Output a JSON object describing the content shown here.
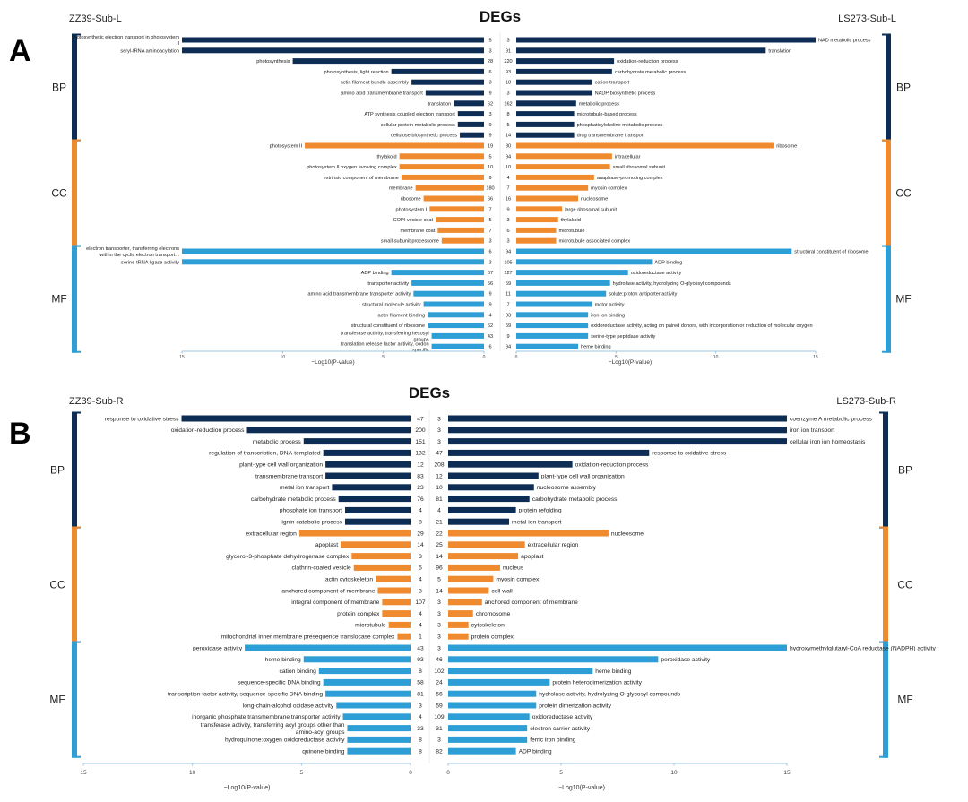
{
  "figure_colors": {
    "BP": "#0d2d55",
    "CC": "#f08a2e",
    "MF": "#2e9fd6",
    "axis": "#9cc6e0",
    "text": "#222222"
  },
  "chart_data": [
    {
      "panel_letter": "A",
      "type": "bar",
      "title": "DEGs",
      "left_label": "ZZ39-Sub-L",
      "right_label": "LS273-Sub-L",
      "xlabel": "−Log10(P-value)",
      "left_xlim": [
        15,
        0
      ],
      "right_xlim": [
        0,
        15
      ],
      "left_ticks": [
        "15",
        "10",
        "5",
        "0"
      ],
      "right_ticks": [
        "0",
        "5",
        "10",
        "15"
      ],
      "left_rows": [
        {
          "cat": "BP",
          "label": "photosynthetic electron transport in photosystem II",
          "value": 15.0,
          "count": "5"
        },
        {
          "cat": "BP",
          "label": "seryl-tRNA aminoacylation",
          "value": 15.0,
          "count": "3"
        },
        {
          "cat": "BP",
          "label": "photosynthesis",
          "value": 9.5,
          "count": "28"
        },
        {
          "cat": "BP",
          "label": "photosynthesis, light reaction",
          "value": 4.6,
          "count": "6"
        },
        {
          "cat": "BP",
          "label": "actin filament bundle assembly",
          "value": 3.6,
          "count": "3"
        },
        {
          "cat": "BP",
          "label": "amino acid transmembrane transport",
          "value": 2.9,
          "count": "9"
        },
        {
          "cat": "BP",
          "label": "translation",
          "value": 1.5,
          "count": "62"
        },
        {
          "cat": "BP",
          "label": "ATP synthesis coupled electron transport",
          "value": 1.3,
          "count": "3"
        },
        {
          "cat": "BP",
          "label": "cellular protein metabolic process",
          "value": 1.3,
          "count": "9"
        },
        {
          "cat": "BP",
          "label": "cellulose biosynthetic process",
          "value": 1.2,
          "count": "9"
        },
        {
          "cat": "CC",
          "label": "photosystem II",
          "value": 8.9,
          "count": "19"
        },
        {
          "cat": "CC",
          "label": "thylakoid",
          "value": 4.2,
          "count": "5"
        },
        {
          "cat": "CC",
          "label": "photosystem II oxygen evolving complex",
          "value": 4.2,
          "count": "10"
        },
        {
          "cat": "CC",
          "label": "extrinsic component of membrane",
          "value": 4.1,
          "count": "9"
        },
        {
          "cat": "CC",
          "label": "membrane",
          "value": 3.4,
          "count": "180"
        },
        {
          "cat": "CC",
          "label": "ribosome",
          "value": 3.0,
          "count": "66"
        },
        {
          "cat": "CC",
          "label": "photosystem I",
          "value": 2.7,
          "count": "7"
        },
        {
          "cat": "CC",
          "label": "COPI vesicle coat",
          "value": 2.4,
          "count": "5"
        },
        {
          "cat": "CC",
          "label": "membrane coat",
          "value": 2.3,
          "count": "7"
        },
        {
          "cat": "CC",
          "label": "small-subunit processome",
          "value": 2.1,
          "count": "3"
        },
        {
          "cat": "MF",
          "label": "electron transporter, transferring electrons within the cyclic electron transport...",
          "value": 15.0,
          "count": "6"
        },
        {
          "cat": "MF",
          "label": "serine-tRNA ligase activity",
          "value": 15.0,
          "count": "3"
        },
        {
          "cat": "MF",
          "label": "ADP binding",
          "value": 4.6,
          "count": "87"
        },
        {
          "cat": "MF",
          "label": "transporter activity",
          "value": 3.6,
          "count": "56"
        },
        {
          "cat": "MF",
          "label": "amino acid transmembrane transporter activity",
          "value": 3.5,
          "count": "9"
        },
        {
          "cat": "MF",
          "label": "structural molecule activity",
          "value": 3.0,
          "count": "9"
        },
        {
          "cat": "MF",
          "label": "actin filament binding",
          "value": 2.8,
          "count": "4"
        },
        {
          "cat": "MF",
          "label": "structural constituent of ribosome",
          "value": 2.8,
          "count": "62"
        },
        {
          "cat": "MF",
          "label": "transferase activity, transferring hexosyl groups",
          "value": 2.6,
          "count": "43"
        },
        {
          "cat": "MF",
          "label": "translation release factor activity, codon specific",
          "value": 2.6,
          "count": "6"
        }
      ],
      "right_rows": [
        {
          "cat": "BP",
          "label": "NAD metabolic process",
          "value": 15.0,
          "count": "3"
        },
        {
          "cat": "BP",
          "label": "translation",
          "value": 12.5,
          "count": "91"
        },
        {
          "cat": "BP",
          "label": "oxidation-reduction process",
          "value": 4.9,
          "count": "220"
        },
        {
          "cat": "BP",
          "label": "carbohydrate metabolic process",
          "value": 4.8,
          "count": "93"
        },
        {
          "cat": "BP",
          "label": "cation transport",
          "value": 3.8,
          "count": "18"
        },
        {
          "cat": "BP",
          "label": "NADP biosynthetic process",
          "value": 3.8,
          "count": "3"
        },
        {
          "cat": "BP",
          "label": "metabolic process",
          "value": 3.0,
          "count": "162"
        },
        {
          "cat": "BP",
          "label": "microtubule-based process",
          "value": 2.9,
          "count": "8"
        },
        {
          "cat": "BP",
          "label": "phosphatidylcholine metabolic process",
          "value": 2.9,
          "count": "5"
        },
        {
          "cat": "BP",
          "label": "drug transmembrane transport",
          "value": 2.9,
          "count": "14"
        },
        {
          "cat": "CC",
          "label": "ribosome",
          "value": 12.9,
          "count": "80"
        },
        {
          "cat": "CC",
          "label": "intracellular",
          "value": 4.8,
          "count": "94"
        },
        {
          "cat": "CC",
          "label": "small ribosomal subunit",
          "value": 4.7,
          "count": "10"
        },
        {
          "cat": "CC",
          "label": "anaphase-promoting complex",
          "value": 3.9,
          "count": "4"
        },
        {
          "cat": "CC",
          "label": "myosin complex",
          "value": 3.6,
          "count": "7"
        },
        {
          "cat": "CC",
          "label": "nucleosome",
          "value": 3.1,
          "count": "16"
        },
        {
          "cat": "CC",
          "label": "large ribosomal subunit",
          "value": 2.3,
          "count": "9"
        },
        {
          "cat": "CC",
          "label": "thylakoid",
          "value": 2.1,
          "count": "3"
        },
        {
          "cat": "CC",
          "label": "microtubule",
          "value": 2.0,
          "count": "6"
        },
        {
          "cat": "CC",
          "label": "microtubule associated complex",
          "value": 2.0,
          "count": "3"
        },
        {
          "cat": "MF",
          "label": "structural constituent of ribosome",
          "value": 13.8,
          "count": "94"
        },
        {
          "cat": "MF",
          "label": "ADP binding",
          "value": 6.8,
          "count": "105"
        },
        {
          "cat": "MF",
          "label": "oxidoreductase activity",
          "value": 5.6,
          "count": "127"
        },
        {
          "cat": "MF",
          "label": "hydrolase activity, hydrolyzing O-glycosyl compounds",
          "value": 4.7,
          "count": "59"
        },
        {
          "cat": "MF",
          "label": "solute:proton antiporter activity",
          "value": 4.5,
          "count": "11"
        },
        {
          "cat": "MF",
          "label": "motor activity",
          "value": 3.8,
          "count": "7"
        },
        {
          "cat": "MF",
          "label": "iron ion binding",
          "value": 3.6,
          "count": "83"
        },
        {
          "cat": "MF",
          "label": "oxidoreductase activity, acting on paired donors, with incorporation or reduction of molecular oxygen",
          "value": 3.6,
          "count": "69"
        },
        {
          "cat": "MF",
          "label": "serine-type peptidase activity",
          "value": 3.6,
          "count": "9"
        },
        {
          "cat": "MF",
          "label": "heme binding",
          "value": 3.1,
          "count": "94"
        }
      ]
    },
    {
      "panel_letter": "B",
      "type": "bar",
      "title": "DEGs",
      "left_label": "ZZ39-Sub-R",
      "right_label": "LS273-Sub-R",
      "xlabel": "−Log10(P-value)",
      "left_xlim": [
        15,
        0
      ],
      "right_xlim": [
        0,
        15
      ],
      "left_ticks": [
        "15",
        "10",
        "5",
        "0"
      ],
      "right_ticks": [
        "0",
        "5",
        "10",
        "15"
      ],
      "left_rows": [
        {
          "cat": "BP",
          "label": "response to oxidative stress",
          "value": 10.5,
          "count": "47"
        },
        {
          "cat": "BP",
          "label": "oxidation-reduction process",
          "value": 7.5,
          "count": "200"
        },
        {
          "cat": "BP",
          "label": "metabolic process",
          "value": 4.9,
          "count": "151"
        },
        {
          "cat": "BP",
          "label": "regulation of transcription, DNA-templated",
          "value": 4.0,
          "count": "132"
        },
        {
          "cat": "BP",
          "label": "plant-type cell wall organization",
          "value": 3.9,
          "count": "12"
        },
        {
          "cat": "BP",
          "label": "transmembrane transport",
          "value": 3.9,
          "count": "83"
        },
        {
          "cat": "BP",
          "label": "metal ion transport",
          "value": 3.6,
          "count": "23"
        },
        {
          "cat": "BP",
          "label": "carbohydrate metabolic process",
          "value": 3.3,
          "count": "76"
        },
        {
          "cat": "BP",
          "label": "phosphate ion transport",
          "value": 3.0,
          "count": "4"
        },
        {
          "cat": "BP",
          "label": "lignin catabolic process",
          "value": 3.0,
          "count": "8"
        },
        {
          "cat": "CC",
          "label": "extracellular region",
          "value": 5.1,
          "count": "29"
        },
        {
          "cat": "CC",
          "label": "apoplast",
          "value": 3.2,
          "count": "14"
        },
        {
          "cat": "CC",
          "label": "glycerol-3-phosphate dehydrogenase complex",
          "value": 2.7,
          "count": "3"
        },
        {
          "cat": "CC",
          "label": "clathrin-coated vesicle",
          "value": 2.6,
          "count": "5"
        },
        {
          "cat": "CC",
          "label": "actin cytoskeleton",
          "value": 1.6,
          "count": "4"
        },
        {
          "cat": "CC",
          "label": "anchored component of membrane",
          "value": 1.5,
          "count": "3"
        },
        {
          "cat": "CC",
          "label": "integral component of membrane",
          "value": 1.3,
          "count": "107"
        },
        {
          "cat": "CC",
          "label": "protein complex",
          "value": 1.3,
          "count": "4"
        },
        {
          "cat": "CC",
          "label": "microtubule",
          "value": 1.0,
          "count": "4"
        },
        {
          "cat": "CC",
          "label": "mitochondrial inner membrane presequence translocase complex",
          "value": 0.6,
          "count": "1"
        },
        {
          "cat": "MF",
          "label": "peroxidase activity",
          "value": 7.6,
          "count": "43"
        },
        {
          "cat": "MF",
          "label": "heme binding",
          "value": 4.9,
          "count": "93"
        },
        {
          "cat": "MF",
          "label": "cation binding",
          "value": 4.2,
          "count": "8"
        },
        {
          "cat": "MF",
          "label": "sequence-specific DNA binding",
          "value": 4.0,
          "count": "58"
        },
        {
          "cat": "MF",
          "label": "transcription factor activity, sequence-specific DNA binding",
          "value": 3.9,
          "count": "81"
        },
        {
          "cat": "MF",
          "label": "long-chain-alcohol oxidase activity",
          "value": 3.4,
          "count": "3"
        },
        {
          "cat": "MF",
          "label": "inorganic phosphate transmembrane transporter activity",
          "value": 3.1,
          "count": "4"
        },
        {
          "cat": "MF",
          "label": "transferase activity, transferring acyl groups other than amino-acyl groups",
          "value": 2.9,
          "count": "33"
        },
        {
          "cat": "MF",
          "label": "hydroquinone:oxygen oxidoreductase activity",
          "value": 2.9,
          "count": "8"
        },
        {
          "cat": "MF",
          "label": "quinone binding",
          "value": 2.9,
          "count": "8"
        }
      ],
      "right_rows": [
        {
          "cat": "BP",
          "label": "coenzyme A metabolic process",
          "value": 15.0,
          "count": "3"
        },
        {
          "cat": "BP",
          "label": "iron ion transport",
          "value": 15.0,
          "count": "3"
        },
        {
          "cat": "BP",
          "label": "cellular iron ion homeostasis",
          "value": 15.0,
          "count": "3"
        },
        {
          "cat": "BP",
          "label": "response to oxidative stress",
          "value": 8.9,
          "count": "47"
        },
        {
          "cat": "BP",
          "label": "oxidation-reduction process",
          "value": 5.5,
          "count": "208"
        },
        {
          "cat": "BP",
          "label": "plant-type cell wall organization",
          "value": 4.0,
          "count": "12"
        },
        {
          "cat": "BP",
          "label": "nucleosome assembly",
          "value": 3.8,
          "count": "10"
        },
        {
          "cat": "BP",
          "label": "carbohydrate metabolic process",
          "value": 3.6,
          "count": "81"
        },
        {
          "cat": "BP",
          "label": "protein refolding",
          "value": 3.0,
          "count": "4"
        },
        {
          "cat": "BP",
          "label": "metal ion transport",
          "value": 2.7,
          "count": "21"
        },
        {
          "cat": "CC",
          "label": "nucleosome",
          "value": 7.1,
          "count": "22"
        },
        {
          "cat": "CC",
          "label": "extracellular region",
          "value": 3.4,
          "count": "25"
        },
        {
          "cat": "CC",
          "label": "apoplast",
          "value": 3.1,
          "count": "14"
        },
        {
          "cat": "CC",
          "label": "nucleus",
          "value": 2.3,
          "count": "96"
        },
        {
          "cat": "CC",
          "label": "myosin complex",
          "value": 2.0,
          "count": "5"
        },
        {
          "cat": "CC",
          "label": "cell wall",
          "value": 1.8,
          "count": "14"
        },
        {
          "cat": "CC",
          "label": "anchored component of membrane",
          "value": 1.5,
          "count": "3"
        },
        {
          "cat": "CC",
          "label": "chromosome",
          "value": 1.1,
          "count": "3"
        },
        {
          "cat": "CC",
          "label": "cytoskeleton",
          "value": 0.9,
          "count": "3"
        },
        {
          "cat": "CC",
          "label": "protein complex",
          "value": 0.9,
          "count": "3"
        },
        {
          "cat": "MF",
          "label": "hydroxymethylglutaryl-CoA reductase (NADPH) activity",
          "value": 15.0,
          "count": "3"
        },
        {
          "cat": "MF",
          "label": "peroxidase activity",
          "value": 9.3,
          "count": "46"
        },
        {
          "cat": "MF",
          "label": "heme binding",
          "value": 6.4,
          "count": "102"
        },
        {
          "cat": "MF",
          "label": "protein heterodimerization activity",
          "value": 4.5,
          "count": "24"
        },
        {
          "cat": "MF",
          "label": "hydrolase activity, hydrolyzing O-glycosyl compounds",
          "value": 3.9,
          "count": "56"
        },
        {
          "cat": "MF",
          "label": "protein dimerization activity",
          "value": 3.9,
          "count": "59"
        },
        {
          "cat": "MF",
          "label": "oxidoreductase activity",
          "value": 3.6,
          "count": "109"
        },
        {
          "cat": "MF",
          "label": "electron carrier activity",
          "value": 3.5,
          "count": "31"
        },
        {
          "cat": "MF",
          "label": "ferric iron binding",
          "value": 3.5,
          "count": "3"
        },
        {
          "cat": "MF",
          "label": "ADP binding",
          "value": 3.0,
          "count": "82"
        }
      ]
    }
  ]
}
